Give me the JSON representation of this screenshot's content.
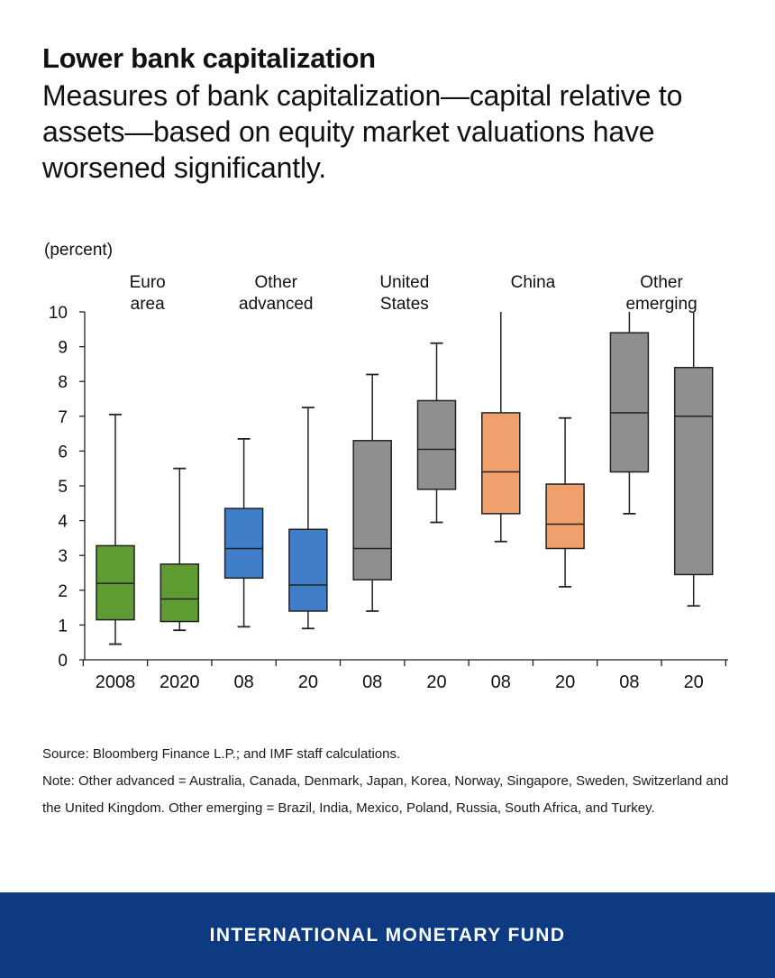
{
  "header": {
    "title": "Lower bank capitalization",
    "subtitle": "Measures of bank capitalization—capital relative to assets—based on equity market valuations have worsened significantly."
  },
  "chart_data": {
    "type": "boxplot",
    "unit_label": "(percent)",
    "ylim": [
      0,
      10
    ],
    "y_ticks": [
      0,
      1,
      2,
      3,
      4,
      5,
      6,
      7,
      8,
      9,
      10
    ],
    "groups": [
      {
        "label_lines": [
          "Euro",
          "area"
        ],
        "color": "#5e9b33"
      },
      {
        "label_lines": [
          "Other",
          "advanced"
        ],
        "color": "#3f7dc8"
      },
      {
        "label_lines": [
          "United",
          "States"
        ],
        "color": "#8f8f8f"
      },
      {
        "label_lines": [
          "China"
        ],
        "color": "#f0a06c"
      },
      {
        "label_lines": [
          "Other",
          "emerging"
        ],
        "color": "#8f8f8f"
      }
    ],
    "boxes": [
      {
        "group": 0,
        "label": "2008",
        "min": 0.45,
        "q1": 1.15,
        "median": 2.2,
        "q3": 3.28,
        "max": 7.05
      },
      {
        "group": 0,
        "label": "2020",
        "min": 0.85,
        "q1": 1.1,
        "median": 1.75,
        "q3": 2.75,
        "max": 5.5
      },
      {
        "group": 1,
        "label": "08",
        "min": 0.95,
        "q1": 2.35,
        "median": 3.2,
        "q3": 4.35,
        "max": 6.35
      },
      {
        "group": 1,
        "label": "20",
        "min": 0.9,
        "q1": 1.4,
        "median": 2.15,
        "q3": 3.75,
        "max": 7.25
      },
      {
        "group": 2,
        "label": "08",
        "min": 1.4,
        "q1": 2.3,
        "median": 3.2,
        "q3": 6.3,
        "max": 8.2
      },
      {
        "group": 2,
        "label": "20",
        "min": 3.95,
        "q1": 4.9,
        "median": 6.05,
        "q3": 7.45,
        "max": 9.1
      },
      {
        "group": 3,
        "label": "08",
        "min": 3.4,
        "q1": 4.2,
        "median": 5.4,
        "q3": 7.1,
        "max": 10
      },
      {
        "group": 3,
        "label": "20",
        "min": 2.1,
        "q1": 3.2,
        "median": 3.9,
        "q3": 5.05,
        "max": 6.95
      },
      {
        "group": 4,
        "label": "08",
        "min": 4.2,
        "q1": 5.4,
        "median": 7.1,
        "q3": 9.4,
        "max": 10
      },
      {
        "group": 4,
        "label": "20",
        "min": 1.55,
        "q1": 2.45,
        "median": 7.0,
        "q3": 8.4,
        "max": 10
      }
    ]
  },
  "notes": {
    "source": "Source: Bloomberg Finance L.P.; and IMF staff calculations.",
    "note": "Note: Other advanced = Australia, Canada, Denmark, Japan, Korea, Norway, Singapore, Sweden, Switzerland and the United Kingdom. Other emerging = Brazil, India, Mexico, Poland, Russia, South Africa, and Turkey."
  },
  "footer": {
    "org": "INTERNATIONAL MONETARY FUND"
  }
}
